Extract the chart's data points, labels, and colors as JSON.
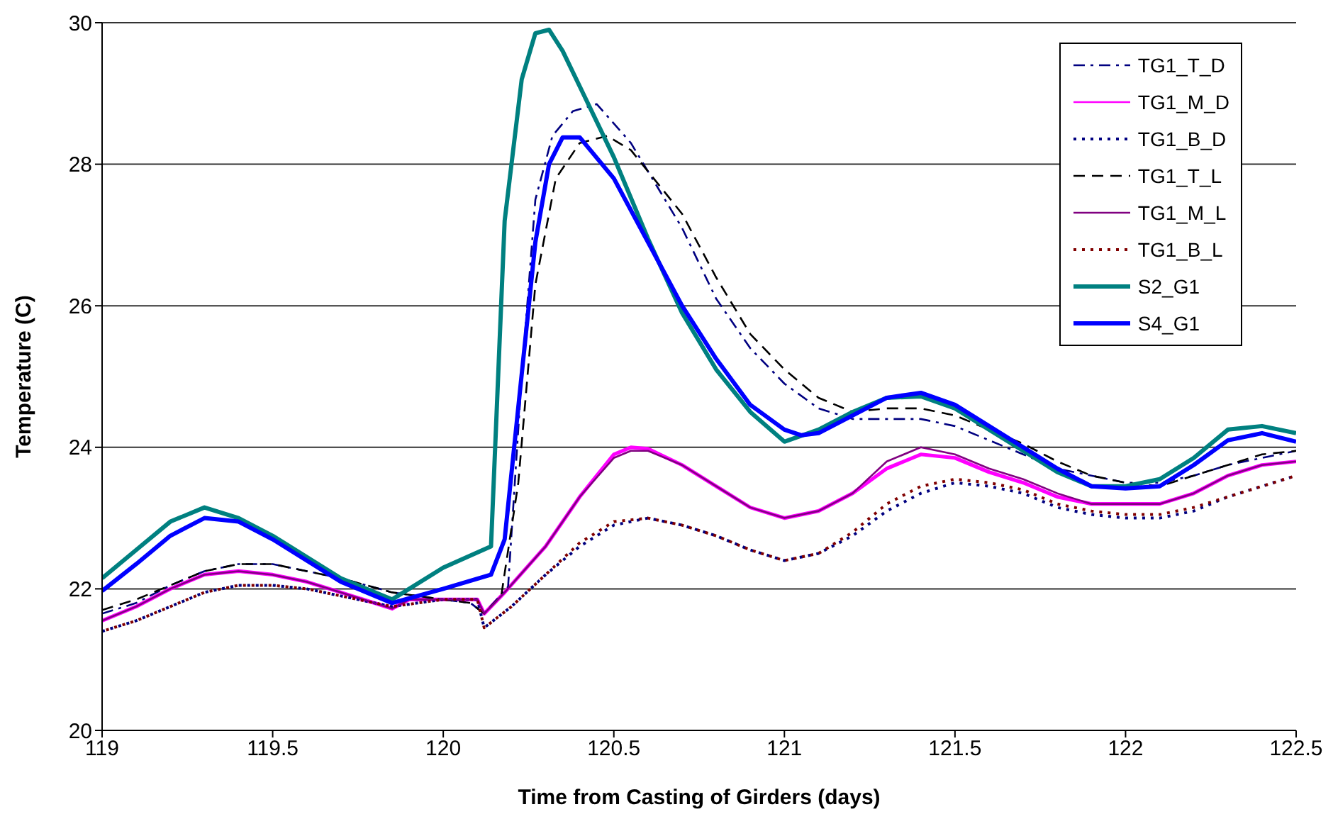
{
  "chart_data": {
    "type": "line",
    "xlabel": "Time from Casting of Girders (days)",
    "ylabel": "Temperature (C)",
    "xlim": [
      119,
      122.5
    ],
    "xticks": [
      119,
      119.5,
      120,
      120.5,
      121,
      121.5,
      122,
      122.5
    ],
    "ylim": [
      20,
      30
    ],
    "yticks": [
      20,
      22,
      24,
      26,
      28,
      30
    ],
    "grid": "y",
    "legend": "top right",
    "marker": "none",
    "series": [
      {
        "name": "TG1_T_D",
        "color": "#000080",
        "line_style": "dashdot",
        "x": [
          119,
          119.1,
          119.2,
          119.3,
          119.4,
          119.5,
          119.6,
          119.7,
          119.85,
          120,
          120.08,
          120.12,
          120.19,
          120.23,
          120.27,
          120.32,
          120.38,
          120.45,
          120.55,
          120.7,
          120.8,
          120.9,
          121,
          121.1,
          121.2,
          121.3,
          121.4,
          121.5,
          121.6,
          121.7,
          121.8,
          121.9,
          122,
          122.1,
          122.2,
          122.3,
          122.4,
          122.5
        ],
        "values": [
          21.65,
          21.8,
          22.05,
          22.25,
          22.35,
          22.35,
          22.25,
          22.15,
          21.95,
          21.85,
          21.8,
          21.65,
          22.03,
          25.0,
          27.5,
          28.4,
          28.75,
          28.85,
          28.3,
          27.1,
          26.1,
          25.4,
          24.9,
          24.55,
          24.4,
          24.4,
          24.4,
          24.3,
          24.1,
          23.9,
          23.7,
          23.6,
          23.5,
          23.5,
          23.6,
          23.75,
          23.85,
          23.95
        ]
      },
      {
        "name": "TG1_M_D",
        "color": "#ff00ff",
        "line_style": "solid",
        "x": [
          119,
          119.1,
          119.2,
          119.3,
          119.4,
          119.5,
          119.6,
          119.7,
          119.85,
          119.9,
          120,
          120.1,
          120.12,
          120.18,
          120.3,
          120.4,
          120.5,
          120.55,
          120.6,
          120.7,
          120.8,
          120.9,
          121,
          121.1,
          121.2,
          121.3,
          121.4,
          121.5,
          121.6,
          121.7,
          121.8,
          121.9,
          122,
          122.1,
          122.2,
          122.3,
          122.4,
          122.5
        ],
        "values": [
          21.55,
          21.75,
          22.0,
          22.2,
          22.25,
          22.2,
          22.1,
          21.95,
          21.72,
          21.85,
          21.85,
          21.85,
          21.65,
          21.95,
          22.6,
          23.3,
          23.9,
          24.0,
          23.98,
          23.75,
          23.45,
          23.15,
          23.0,
          23.1,
          23.35,
          23.7,
          23.9,
          23.85,
          23.65,
          23.5,
          23.3,
          23.2,
          23.2,
          23.2,
          23.35,
          23.6,
          23.75,
          23.8
        ]
      },
      {
        "name": "TG1_B_D",
        "color": "#000080",
        "line_style": "dotted",
        "x": [
          119,
          119.1,
          119.2,
          119.3,
          119.4,
          119.5,
          119.6,
          119.7,
          119.85,
          120,
          120.1,
          120.12,
          120.2,
          120.3,
          120.4,
          120.5,
          120.6,
          120.7,
          120.8,
          120.9,
          121,
          121.1,
          121.2,
          121.3,
          121.4,
          121.5,
          121.6,
          121.7,
          121.8,
          121.9,
          122,
          122.1,
          122.2,
          122.3,
          122.4,
          122.5
        ],
        "values": [
          21.4,
          21.55,
          21.75,
          21.95,
          22.05,
          22.05,
          22.0,
          21.9,
          21.75,
          21.85,
          21.85,
          21.45,
          21.75,
          22.2,
          22.6,
          22.9,
          23.0,
          22.9,
          22.75,
          22.55,
          22.4,
          22.5,
          22.75,
          23.1,
          23.35,
          23.5,
          23.45,
          23.35,
          23.15,
          23.05,
          23.0,
          23.0,
          23.1,
          23.3,
          23.45,
          23.6
        ]
      },
      {
        "name": "TG1_T_L",
        "color": "#000000",
        "line_style": "dashed",
        "x": [
          119,
          119.1,
          119.2,
          119.3,
          119.4,
          119.5,
          119.6,
          119.7,
          119.85,
          120,
          120.08,
          120.12,
          120.17,
          120.22,
          120.27,
          120.33,
          120.4,
          120.48,
          120.55,
          120.7,
          120.8,
          120.9,
          121,
          121.1,
          121.2,
          121.3,
          121.4,
          121.5,
          121.6,
          121.7,
          121.8,
          121.9,
          122,
          122.1,
          122.2,
          122.3,
          122.4,
          122.5
        ],
        "values": [
          21.7,
          21.85,
          22.05,
          22.25,
          22.35,
          22.35,
          22.25,
          22.15,
          21.95,
          21.85,
          21.8,
          21.65,
          21.9,
          23.5,
          26.3,
          27.8,
          28.3,
          28.4,
          28.2,
          27.3,
          26.4,
          25.6,
          25.1,
          24.7,
          24.5,
          24.55,
          24.55,
          24.45,
          24.25,
          24.05,
          23.8,
          23.6,
          23.5,
          23.45,
          23.6,
          23.75,
          23.9,
          23.95
        ]
      },
      {
        "name": "TG1_M_L",
        "color": "#800080",
        "line_style": "solid",
        "x": [
          119,
          119.1,
          119.2,
          119.3,
          119.4,
          119.5,
          119.6,
          119.7,
          119.85,
          119.9,
          120,
          120.1,
          120.12,
          120.18,
          120.3,
          120.4,
          120.5,
          120.55,
          120.6,
          120.7,
          120.8,
          120.9,
          121,
          121.1,
          121.2,
          121.3,
          121.4,
          121.5,
          121.6,
          121.7,
          121.8,
          121.9,
          122,
          122.1,
          122.2,
          122.3,
          122.4,
          122.5
        ],
        "values": [
          21.55,
          21.75,
          22.0,
          22.2,
          22.25,
          22.2,
          22.1,
          21.95,
          21.72,
          21.85,
          21.85,
          21.85,
          21.65,
          21.95,
          22.6,
          23.3,
          23.85,
          23.95,
          23.95,
          23.75,
          23.45,
          23.15,
          23.0,
          23.1,
          23.35,
          23.8,
          24.0,
          23.9,
          23.7,
          23.55,
          23.35,
          23.2,
          23.2,
          23.2,
          23.35,
          23.6,
          23.75,
          23.8
        ]
      },
      {
        "name": "TG1_B_L",
        "color": "#800000",
        "line_style": "dotted",
        "x": [
          119,
          119.1,
          119.2,
          119.3,
          119.4,
          119.5,
          119.6,
          119.7,
          119.85,
          120,
          120.1,
          120.12,
          120.2,
          120.3,
          120.4,
          120.5,
          120.6,
          120.7,
          120.8,
          120.9,
          121,
          121.1,
          121.2,
          121.3,
          121.4,
          121.5,
          121.6,
          121.7,
          121.8,
          121.9,
          122,
          122.1,
          122.2,
          122.3,
          122.4,
          122.5
        ],
        "values": [
          21.4,
          21.55,
          21.75,
          21.95,
          22.05,
          22.05,
          22.0,
          21.9,
          21.75,
          21.85,
          21.85,
          21.45,
          21.75,
          22.2,
          22.65,
          22.95,
          23.0,
          22.9,
          22.75,
          22.55,
          22.4,
          22.5,
          22.8,
          23.2,
          23.45,
          23.55,
          23.5,
          23.4,
          23.2,
          23.1,
          23.05,
          23.05,
          23.15,
          23.3,
          23.45,
          23.6
        ]
      },
      {
        "name": "S2_G1",
        "color": "#008080",
        "line_style": "solid",
        "x": [
          119,
          119.1,
          119.2,
          119.3,
          119.4,
          119.5,
          119.6,
          119.7,
          119.85,
          120,
          120.14,
          120.18,
          120.23,
          120.27,
          120.31,
          120.35,
          120.4,
          120.5,
          120.6,
          120.7,
          120.8,
          120.9,
          121,
          121.1,
          121.2,
          121.3,
          121.4,
          121.5,
          121.6,
          121.7,
          121.8,
          121.9,
          122,
          122.1,
          122.2,
          122.3,
          122.4,
          122.5
        ],
        "values": [
          22.15,
          22.55,
          22.95,
          23.15,
          23.0,
          22.75,
          22.45,
          22.15,
          21.85,
          22.3,
          22.6,
          27.2,
          29.2,
          29.85,
          29.9,
          29.6,
          29.1,
          28.1,
          26.95,
          25.9,
          25.1,
          24.5,
          24.08,
          24.25,
          24.5,
          24.7,
          24.72,
          24.55,
          24.25,
          23.95,
          23.65,
          23.45,
          23.45,
          23.55,
          23.85,
          24.25,
          24.3,
          24.2
        ]
      },
      {
        "name": "S4_G1",
        "color": "#0000ff",
        "line_style": "solid",
        "x": [
          119,
          119.1,
          119.2,
          119.3,
          119.4,
          119.5,
          119.6,
          119.7,
          119.85,
          120,
          120.14,
          120.18,
          120.27,
          120.31,
          120.35,
          120.4,
          120.5,
          120.6,
          120.7,
          120.8,
          120.9,
          121,
          121.05,
          121.1,
          121.2,
          121.3,
          121.4,
          121.5,
          121.6,
          121.7,
          121.8,
          121.9,
          122,
          122.1,
          122.2,
          122.3,
          122.4,
          122.5
        ],
        "values": [
          21.97,
          22.35,
          22.75,
          23.0,
          22.95,
          22.7,
          22.4,
          22.1,
          21.8,
          22.0,
          22.2,
          22.7,
          26.9,
          28.0,
          28.38,
          28.38,
          27.8,
          26.9,
          26.0,
          25.25,
          24.6,
          24.25,
          24.17,
          24.2,
          24.45,
          24.7,
          24.77,
          24.6,
          24.3,
          24.0,
          23.7,
          23.45,
          23.42,
          23.45,
          23.75,
          24.1,
          24.2,
          24.08
        ]
      }
    ]
  }
}
